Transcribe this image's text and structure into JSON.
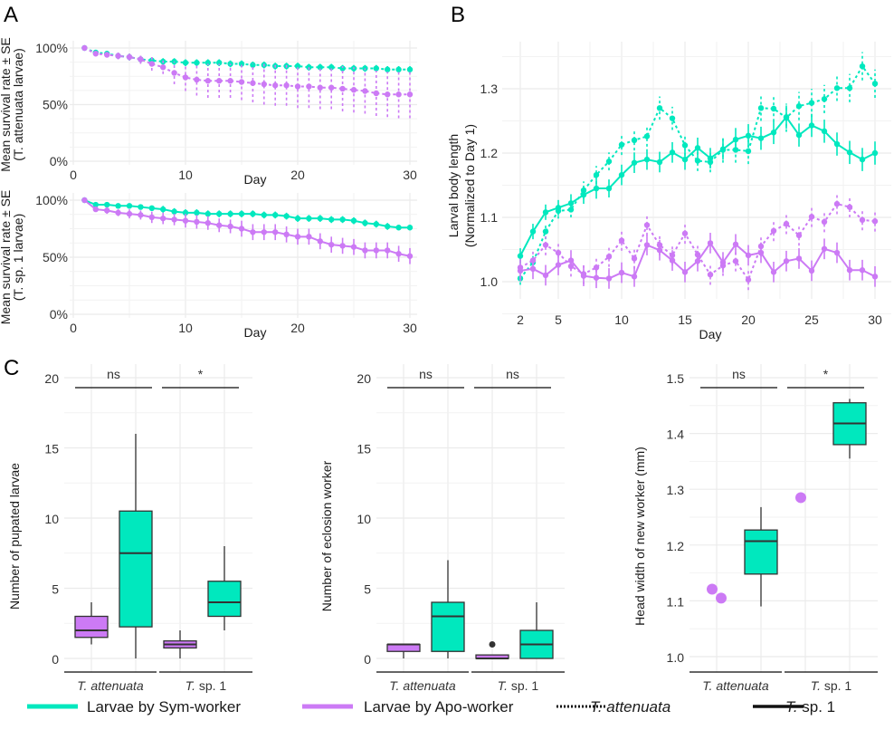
{
  "colors": {
    "sym": "#00E8BE",
    "apo": "#CC7AF5",
    "axis": "#333333"
  },
  "panels": {
    "A": "A",
    "B": "B",
    "C": "C"
  },
  "legend": {
    "items": [
      {
        "label": "Larvae by Sym-worker",
        "style": "sym"
      },
      {
        "label": "Larvae by Apo-worker",
        "style": "apo"
      },
      {
        "label": "T. attenuata",
        "style": "dotted",
        "italic": true
      },
      {
        "label": "T. sp. 1",
        "style": "solid",
        "italic_prefix": "T.",
        "rest": " sp. 1"
      }
    ]
  },
  "chart_data": [
    {
      "id": "A-top",
      "type": "line",
      "title": "",
      "xlabel": "Day",
      "ylabel": "Mean survival rate ± SE",
      "ylabel2": "(T. attenuata larvae)",
      "xlim": [
        0,
        30
      ],
      "ylim": [
        0,
        100
      ],
      "xticks": [
        0,
        10,
        20,
        30
      ],
      "yticks": [
        "0%",
        "50%",
        "100%"
      ],
      "linestyle": "dotted",
      "x": [
        1,
        2,
        3,
        4,
        5,
        6,
        7,
        8,
        9,
        10,
        11,
        12,
        13,
        14,
        15,
        16,
        17,
        18,
        19,
        20,
        21,
        22,
        23,
        24,
        25,
        26,
        27,
        28,
        29,
        30
      ],
      "series": [
        {
          "name": "Larvae by Sym-worker",
          "color": "sym",
          "values": [
            100,
            96,
            95,
            93,
            92,
            90,
            89,
            88,
            88,
            87,
            87,
            87,
            87,
            86,
            86,
            85,
            85,
            84,
            84,
            84,
            83,
            83,
            83,
            82,
            82,
            82,
            82,
            81,
            81,
            81
          ],
          "se": [
            0,
            1,
            2,
            2,
            3,
            3,
            3,
            3,
            3,
            3,
            3,
            3,
            3,
            3,
            3,
            3,
            3,
            3,
            3,
            3,
            3,
            3,
            3,
            3,
            3,
            3,
            3,
            3,
            3,
            3
          ]
        },
        {
          "name": "Larvae by Apo-worker",
          "color": "apo",
          "values": [
            100,
            95,
            94,
            93,
            92,
            90,
            86,
            83,
            78,
            74,
            72,
            71,
            71,
            71,
            70,
            69,
            68,
            67,
            67,
            66,
            66,
            65,
            65,
            64,
            63,
            62,
            60,
            59,
            59,
            59
          ],
          "se": [
            0,
            1,
            2,
            3,
            3,
            4,
            6,
            6,
            10,
            12,
            14,
            15,
            15,
            15,
            16,
            17,
            18,
            18,
            18,
            19,
            19,
            19,
            19,
            20,
            20,
            20,
            20,
            20,
            21,
            21
          ]
        }
      ]
    },
    {
      "id": "A-bottom",
      "type": "line",
      "xlabel": "Day",
      "ylabel": "Mean survival rate ± SE",
      "ylabel2": "(T. sp. 1 larvae)",
      "xlim": [
        0,
        30
      ],
      "ylim": [
        0,
        100
      ],
      "xticks": [
        0,
        10,
        20,
        30
      ],
      "yticks": [
        "0%",
        "50%",
        "100%"
      ],
      "linestyle": "solid",
      "x": [
        1,
        2,
        3,
        4,
        5,
        6,
        7,
        8,
        9,
        10,
        11,
        12,
        13,
        14,
        15,
        16,
        17,
        18,
        19,
        20,
        21,
        22,
        23,
        24,
        25,
        26,
        27,
        28,
        29,
        30
      ],
      "series": [
        {
          "name": "Larvae by Sym-worker",
          "color": "sym",
          "values": [
            100,
            96,
            96,
            95,
            95,
            94,
            93,
            92,
            90,
            89,
            89,
            88,
            88,
            88,
            88,
            88,
            87,
            87,
            86,
            84,
            84,
            84,
            83,
            83,
            82,
            80,
            79,
            77,
            76,
            76
          ],
          "se": [
            0,
            1,
            1,
            2,
            2,
            2,
            2,
            3,
            3,
            3,
            3,
            3,
            3,
            3,
            3,
            3,
            3,
            3,
            3,
            3,
            3,
            3,
            3,
            3,
            3,
            3,
            3,
            3,
            2,
            2
          ]
        },
        {
          "name": "Larvae by Apo-worker",
          "color": "apo",
          "values": [
            100,
            92,
            91,
            89,
            88,
            87,
            85,
            84,
            83,
            82,
            81,
            80,
            78,
            77,
            75,
            72,
            72,
            72,
            70,
            68,
            68,
            64,
            61,
            60,
            59,
            56,
            56,
            56,
            53,
            51
          ],
          "se": [
            0,
            2,
            3,
            3,
            4,
            4,
            5,
            5,
            5,
            6,
            6,
            6,
            6,
            6,
            7,
            7,
            7,
            7,
            7,
            7,
            7,
            7,
            7,
            7,
            7,
            7,
            7,
            7,
            7,
            7
          ]
        }
      ]
    },
    {
      "id": "B",
      "type": "line",
      "xlabel": "Day",
      "ylabel": "Larval body length",
      "ylabel2": "(Normalized to Day 1)",
      "xlim": [
        2,
        30
      ],
      "ylim": [
        0.97,
        1.36
      ],
      "xticks": [
        2,
        5,
        10,
        15,
        20,
        25,
        30
      ],
      "yticks": [
        1.0,
        1.1,
        1.2,
        1.3
      ],
      "x": [
        2,
        3,
        4,
        5,
        6,
        7,
        8,
        9,
        10,
        11,
        12,
        13,
        14,
        15,
        16,
        17,
        18,
        19,
        20,
        21,
        22,
        23,
        24,
        25,
        26,
        27,
        28,
        29,
        30
      ],
      "series": [
        {
          "name": "Sym / T. sp. 1",
          "color": "sym",
          "linestyle": "solid",
          "values": [
            1.04,
            1.078,
            1.108,
            1.115,
            1.122,
            1.135,
            1.145,
            1.145,
            1.166,
            1.185,
            1.19,
            1.186,
            1.201,
            1.19,
            1.208,
            1.192,
            1.206,
            1.221,
            1.227,
            1.223,
            1.232,
            1.256,
            1.228,
            1.243,
            1.234,
            1.214,
            1.201,
            1.19,
            1.2
          ],
          "se": [
            0.012,
            0.012,
            0.012,
            0.012,
            0.014,
            0.014,
            0.016,
            0.014,
            0.016,
            0.016,
            0.016,
            0.016,
            0.016,
            0.016,
            0.016,
            0.016,
            0.016,
            0.018,
            0.018,
            0.018,
            0.018,
            0.018,
            0.018,
            0.018,
            0.018,
            0.018,
            0.018,
            0.018,
            0.018
          ]
        },
        {
          "name": "Sym / T. attenuata",
          "color": "sym",
          "linestyle": "dotted",
          "values": [
            1.005,
            1.03,
            1.078,
            1.11,
            1.112,
            1.142,
            1.166,
            1.187,
            1.213,
            1.22,
            1.226,
            1.27,
            1.254,
            1.212,
            1.188,
            1.186,
            1.205,
            1.205,
            1.203,
            1.27,
            1.269,
            1.255,
            1.273,
            1.278,
            1.284,
            1.301,
            1.301,
            1.335,
            1.308
          ],
          "se": [
            0.01,
            0.01,
            0.012,
            0.012,
            0.012,
            0.014,
            0.014,
            0.014,
            0.016,
            0.016,
            0.016,
            0.018,
            0.018,
            0.016,
            0.016,
            0.016,
            0.02,
            0.02,
            0.02,
            0.02,
            0.02,
            0.022,
            0.022,
            0.022,
            0.022,
            0.02,
            0.022,
            0.022,
            0.022
          ]
        },
        {
          "name": "Apo / T. sp. 1",
          "color": "apo",
          "linestyle": "solid",
          "values": [
            1.017,
            1.02,
            1.01,
            1.026,
            1.033,
            1.009,
            1.006,
            1.005,
            1.014,
            1.008,
            1.057,
            1.049,
            1.033,
            1.015,
            1.032,
            1.06,
            1.03,
            1.058,
            1.041,
            1.045,
            1.015,
            1.032,
            1.036,
            1.017,
            1.051,
            1.045,
            1.018,
            1.018,
            1.008
          ]
        },
        {
          "name": "Apo / T. attenuata",
          "color": "apo",
          "linestyle": "dotted",
          "values": [
            1.022,
            1.033,
            1.057,
            1.045,
            1.024,
            1.012,
            1.022,
            1.039,
            1.064,
            1.036,
            1.088,
            1.057,
            1.041,
            1.075,
            1.042,
            1.011,
            1.025,
            1.032,
            1.003,
            1.055,
            1.079,
            1.09,
            1.072,
            1.101,
            1.093,
            1.121,
            1.116,
            1.096,
            1.094
          ]
        }
      ]
    },
    {
      "id": "C1",
      "type": "box",
      "ylabel": "Number of pupated larvae",
      "ylim": [
        0,
        20
      ],
      "yticks": [
        0,
        5,
        10,
        15,
        20
      ],
      "groups": [
        "T. attenuata",
        "T. sp. 1"
      ],
      "significance": [
        "ns",
        "*"
      ],
      "boxes": [
        {
          "group": 0,
          "series": "apo",
          "min": 1,
          "q1": 1.5,
          "median": 2,
          "q3": 3,
          "max": 4
        },
        {
          "group": 0,
          "series": "sym",
          "min": 0,
          "q1": 2.25,
          "median": 7.5,
          "q3": 10.5,
          "max": 16
        },
        {
          "group": 1,
          "series": "apo",
          "min": 0,
          "q1": 0.75,
          "median": 1,
          "q3": 1.25,
          "max": 2
        },
        {
          "group": 1,
          "series": "sym",
          "min": 2,
          "q1": 3,
          "median": 4,
          "q3": 5.5,
          "max": 8
        }
      ]
    },
    {
      "id": "C2",
      "type": "box",
      "ylabel": "Number of eclosion worker",
      "ylim": [
        0,
        20
      ],
      "yticks": [
        0,
        5,
        10,
        15,
        20
      ],
      "groups": [
        "T. attenuata",
        "T. sp. 1"
      ],
      "significance": [
        "ns",
        "ns"
      ],
      "boxes": [
        {
          "group": 0,
          "series": "apo",
          "min": 0,
          "q1": 0.5,
          "median": 1,
          "q3": 1,
          "max": 1
        },
        {
          "group": 0,
          "series": "sym",
          "min": 0,
          "q1": 0.5,
          "median": 3,
          "q3": 4,
          "max": 7
        },
        {
          "group": 1,
          "series": "apo",
          "min": 0,
          "q1": 0,
          "median": 0,
          "q3": 0.25,
          "max": 0.25,
          "outliers": [
            1
          ]
        },
        {
          "group": 1,
          "series": "sym",
          "min": 0,
          "q1": 0,
          "median": 1,
          "q3": 2,
          "max": 4
        }
      ]
    },
    {
      "id": "C3",
      "type": "box",
      "ylabel": "Head width of new worker (mm)",
      "ylim": [
        0.97,
        1.5
      ],
      "yticks": [
        1.0,
        1.1,
        1.2,
        1.3,
        1.4,
        1.5
      ],
      "groups": [
        "T. attenuata",
        "T. sp. 1"
      ],
      "significance": [
        "ns",
        "*"
      ],
      "boxes": [
        {
          "group": 0,
          "series": "apo",
          "points": [
            1.121,
            1.105
          ]
        },
        {
          "group": 0,
          "series": "sym",
          "min": 1.09,
          "q1": 1.148,
          "median": 1.207,
          "q3": 1.227,
          "max": 1.268
        },
        {
          "group": 1,
          "series": "apo",
          "points": [
            1.285
          ]
        },
        {
          "group": 1,
          "series": "sym",
          "min": 1.355,
          "q1": 1.38,
          "median": 1.418,
          "q3": 1.455,
          "max": 1.462
        }
      ]
    }
  ]
}
